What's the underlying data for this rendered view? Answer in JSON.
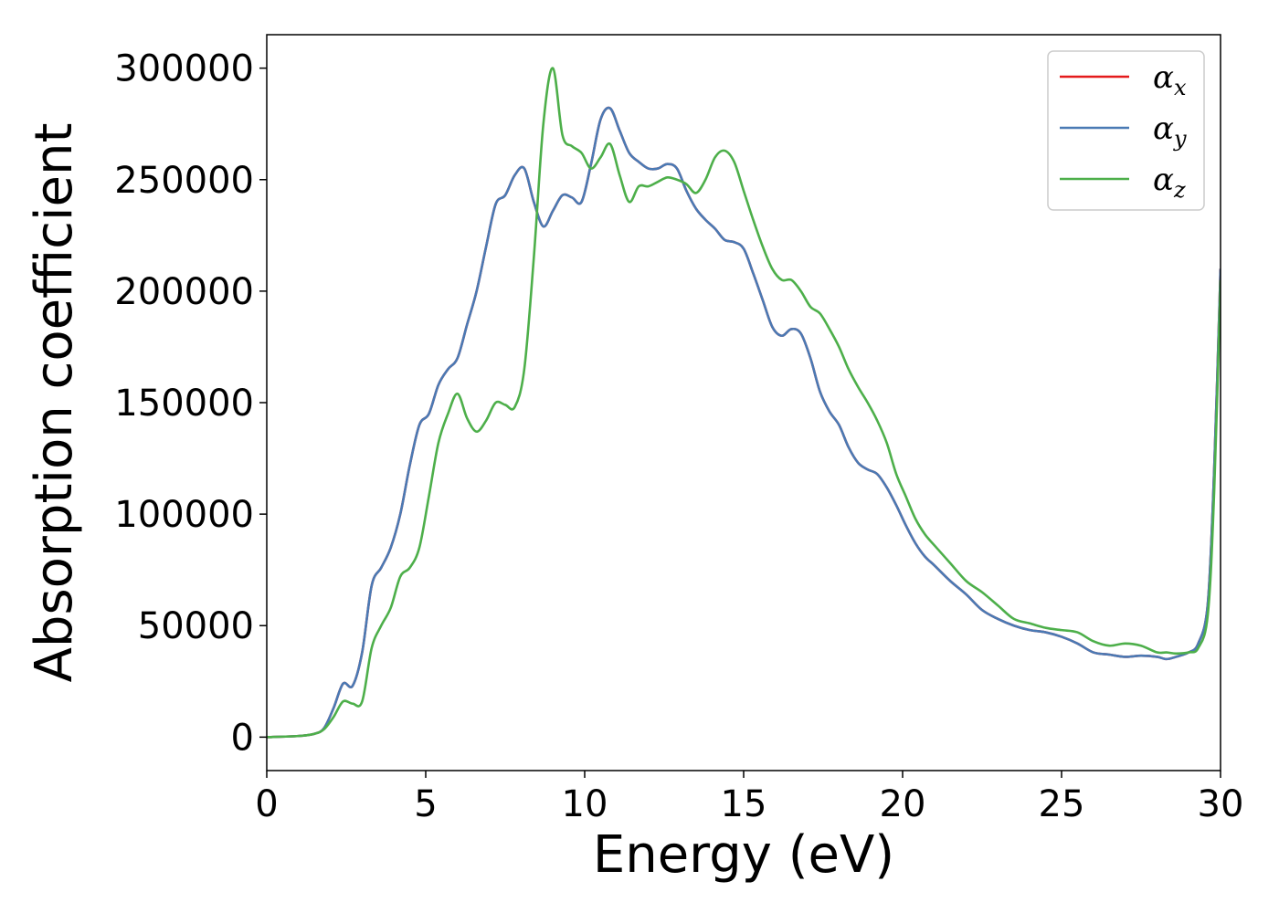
{
  "chart_data": {
    "type": "line",
    "xlabel": "Energy (eV)",
    "ylabel": "Absorption coefficient",
    "xlim": [
      0,
      30
    ],
    "ylim": [
      -15000,
      315000
    ],
    "xticks": [
      0,
      5,
      10,
      15,
      20,
      25,
      30
    ],
    "yticks": [
      0,
      50000,
      100000,
      150000,
      200000,
      250000,
      300000
    ],
    "grid": false,
    "legend_position": "top-right",
    "series": [
      {
        "name": "αx",
        "symbol": "α",
        "subscript": "x",
        "color": "#e41a1c",
        "x": [
          0,
          1,
          1.5,
          1.8,
          2.1,
          2.4,
          2.7,
          3.0,
          3.3,
          3.6,
          3.9,
          4.2,
          4.5,
          4.8,
          5.1,
          5.4,
          5.7,
          6.0,
          6.3,
          6.6,
          6.9,
          7.2,
          7.5,
          7.8,
          8.1,
          8.4,
          8.7,
          9.0,
          9.3,
          9.6,
          9.9,
          10.2,
          10.5,
          10.8,
          11.1,
          11.4,
          11.7,
          12.0,
          12.3,
          12.6,
          12.9,
          13.2,
          13.5,
          13.8,
          14.1,
          14.4,
          14.7,
          15.0,
          15.3,
          15.6,
          15.9,
          16.2,
          16.5,
          16.8,
          17.1,
          17.4,
          17.7,
          18.0,
          18.3,
          18.6,
          18.9,
          19.2,
          19.5,
          19.8,
          20.1,
          20.4,
          20.7,
          21.0,
          21.5,
          22.0,
          22.5,
          23.0,
          23.5,
          24.0,
          24.5,
          25.0,
          25.5,
          26.0,
          26.5,
          27.0,
          27.5,
          28.0,
          28.3,
          28.6,
          29.0,
          29.3,
          29.6,
          29.8,
          30.0
        ],
        "y": [
          0,
          500,
          1500,
          4000,
          13000,
          24000,
          23000,
          38000,
          68000,
          76000,
          85000,
          100000,
          122000,
          140000,
          145000,
          158000,
          165000,
          170000,
          185000,
          200000,
          220000,
          239000,
          243000,
          252000,
          255000,
          240000,
          229000,
          236000,
          243000,
          242000,
          240000,
          257000,
          277000,
          282000,
          272000,
          262000,
          258000,
          255000,
          255000,
          257000,
          255000,
          245000,
          237000,
          232000,
          228000,
          223000,
          222000,
          219000,
          208000,
          196000,
          184000,
          180000,
          183000,
          181000,
          170000,
          155000,
          146000,
          140000,
          130000,
          123000,
          120000,
          118000,
          112000,
          104000,
          95000,
          87000,
          81000,
          77000,
          70000,
          64000,
          57000,
          53000,
          50000,
          48000,
          47000,
          45000,
          42000,
          38000,
          37000,
          36000,
          36500,
          36000,
          35000,
          36000,
          38000,
          42000,
          60000,
          120000,
          210000
        ]
      },
      {
        "name": "αy",
        "symbol": "α",
        "subscript": "y",
        "color": "#4a7ab4",
        "x": [
          0,
          1,
          1.5,
          1.8,
          2.1,
          2.4,
          2.7,
          3.0,
          3.3,
          3.6,
          3.9,
          4.2,
          4.5,
          4.8,
          5.1,
          5.4,
          5.7,
          6.0,
          6.3,
          6.6,
          6.9,
          7.2,
          7.5,
          7.8,
          8.1,
          8.4,
          8.7,
          9.0,
          9.3,
          9.6,
          9.9,
          10.2,
          10.5,
          10.8,
          11.1,
          11.4,
          11.7,
          12.0,
          12.3,
          12.6,
          12.9,
          13.2,
          13.5,
          13.8,
          14.1,
          14.4,
          14.7,
          15.0,
          15.3,
          15.6,
          15.9,
          16.2,
          16.5,
          16.8,
          17.1,
          17.4,
          17.7,
          18.0,
          18.3,
          18.6,
          18.9,
          19.2,
          19.5,
          19.8,
          20.1,
          20.4,
          20.7,
          21.0,
          21.5,
          22.0,
          22.5,
          23.0,
          23.5,
          24.0,
          24.5,
          25.0,
          25.5,
          26.0,
          26.5,
          27.0,
          27.5,
          28.0,
          28.3,
          28.6,
          29.0,
          29.3,
          29.6,
          29.8,
          30.0
        ],
        "y": [
          0,
          500,
          1500,
          4000,
          13000,
          24000,
          23000,
          38000,
          68000,
          76000,
          85000,
          100000,
          122000,
          140000,
          145000,
          158000,
          165000,
          170000,
          185000,
          200000,
          220000,
          239000,
          243000,
          252000,
          255000,
          240000,
          229000,
          236000,
          243000,
          242000,
          240000,
          257000,
          277000,
          282000,
          272000,
          262000,
          258000,
          255000,
          255000,
          257000,
          255000,
          245000,
          237000,
          232000,
          228000,
          223000,
          222000,
          219000,
          208000,
          196000,
          184000,
          180000,
          183000,
          181000,
          170000,
          155000,
          146000,
          140000,
          130000,
          123000,
          120000,
          118000,
          112000,
          104000,
          95000,
          87000,
          81000,
          77000,
          70000,
          64000,
          57000,
          53000,
          50000,
          48000,
          47000,
          45000,
          42000,
          38000,
          37000,
          36000,
          36500,
          36000,
          35000,
          36000,
          38000,
          42000,
          60000,
          120000,
          210000
        ]
      },
      {
        "name": "αz",
        "symbol": "α",
        "subscript": "z",
        "color": "#4daf4a",
        "x": [
          0,
          1,
          1.5,
          1.8,
          2.1,
          2.4,
          2.7,
          3.0,
          3.3,
          3.6,
          3.9,
          4.2,
          4.5,
          4.8,
          5.1,
          5.4,
          5.7,
          6.0,
          6.3,
          6.6,
          6.9,
          7.2,
          7.5,
          7.8,
          8.1,
          8.4,
          8.7,
          9.0,
          9.3,
          9.6,
          9.9,
          10.2,
          10.5,
          10.8,
          11.1,
          11.4,
          11.7,
          12.0,
          12.3,
          12.6,
          12.9,
          13.2,
          13.5,
          13.8,
          14.1,
          14.4,
          14.7,
          15.0,
          15.3,
          15.6,
          15.9,
          16.2,
          16.5,
          16.8,
          17.1,
          17.4,
          17.7,
          18.0,
          18.3,
          18.6,
          18.9,
          19.2,
          19.5,
          19.8,
          20.1,
          20.4,
          20.7,
          21.0,
          21.5,
          22.0,
          22.5,
          23.0,
          23.5,
          24.0,
          24.5,
          25.0,
          25.5,
          26.0,
          26.5,
          27.0,
          27.5,
          28.0,
          28.3,
          28.6,
          29.0,
          29.3,
          29.6,
          29.8,
          30.0
        ],
        "y": [
          0,
          500,
          1500,
          3500,
          9000,
          16000,
          15000,
          16000,
          40000,
          50000,
          58000,
          72000,
          76000,
          85000,
          108000,
          132000,
          145000,
          154000,
          143000,
          137000,
          142000,
          150000,
          149000,
          148000,
          165000,
          215000,
          275000,
          300000,
          270000,
          265000,
          262000,
          255000,
          260000,
          266000,
          252000,
          240000,
          247000,
          247000,
          249000,
          251000,
          250000,
          248000,
          244000,
          250000,
          260000,
          263000,
          258000,
          245000,
          232000,
          220000,
          210000,
          205000,
          205000,
          200000,
          193000,
          190000,
          183000,
          175000,
          165000,
          157000,
          150000,
          142000,
          132000,
          118000,
          108000,
          98000,
          91000,
          86000,
          78000,
          70000,
          65000,
          59000,
          53000,
          51000,
          49000,
          48000,
          47000,
          43000,
          41000,
          42000,
          41000,
          38000,
          38000,
          37500,
          38000,
          40000,
          55000,
          110000,
          205000
        ]
      }
    ]
  }
}
